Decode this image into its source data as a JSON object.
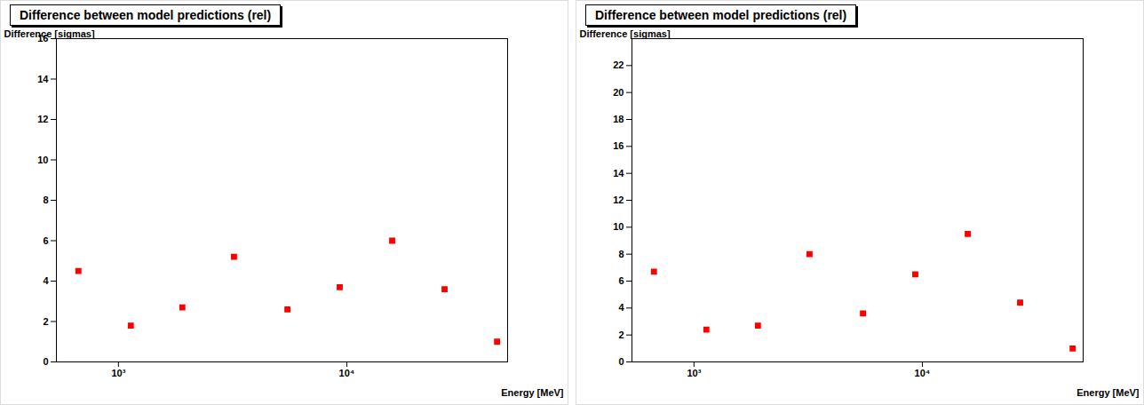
{
  "chart_data": [
    {
      "type": "scatter",
      "title": "Difference between model predictions (rel)",
      "xlabel": "Energy [MeV]",
      "ylabel": "Difference [sigmas]",
      "x": [
        668,
        1133,
        1905,
        3206,
        5495,
        9310,
        15800,
        26800,
        45500
      ],
      "values": [
        4.5,
        1.8,
        2.7,
        5.2,
        2.6,
        3.7,
        6.0,
        3.6,
        1.0
      ],
      "color": "#ff0000",
      "marker": "square",
      "log": "x",
      "xlim": [
        535,
        50600
      ],
      "xticks": [
        {
          "value": 1000,
          "label": "10³"
        },
        {
          "value": 10000,
          "label": "10⁴"
        }
      ],
      "ylim": [
        0,
        16
      ],
      "yticks": [
        0,
        2,
        4,
        6,
        8,
        10,
        12,
        14,
        16
      ]
    },
    {
      "type": "scatter",
      "title": "Difference between model predictions (rel)",
      "xlabel": "Energy [MeV]",
      "ylabel": "Difference [sigmas]",
      "x": [
        668,
        1133,
        1905,
        3206,
        5495,
        9310,
        15800,
        26800,
        45500
      ],
      "values": [
        6.7,
        2.4,
        2.7,
        8.0,
        3.6,
        6.5,
        9.5,
        4.4,
        1.0
      ],
      "color": "#ff0000",
      "marker": "square",
      "log": "x",
      "xlim": [
        535,
        50600
      ],
      "xticks": [
        {
          "value": 1000,
          "label": "10³"
        },
        {
          "value": 10000,
          "label": "10⁴"
        }
      ],
      "ylim": [
        0,
        24
      ],
      "yticks": [
        0,
        2,
        4,
        6,
        8,
        10,
        12,
        14,
        16,
        18,
        20,
        22
      ]
    }
  ]
}
